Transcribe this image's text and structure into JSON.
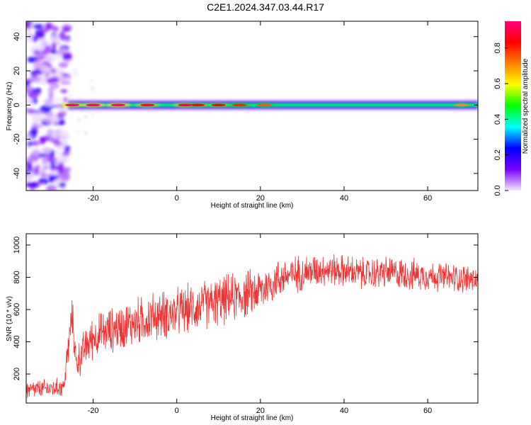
{
  "title": "C2E1.2024.347.03.44.R17",
  "chart_data": [
    {
      "type": "heatmap",
      "title": "",
      "xlabel": "Height of straight line (km)",
      "ylabel": "Frequency (Hz)",
      "xlim": [
        -36,
        72
      ],
      "ylim": [
        -50,
        49
      ],
      "xticks": [
        -20,
        0,
        20,
        40,
        60
      ],
      "yticks": [
        -40,
        -20,
        0,
        20,
        40
      ],
      "xtick_labels": [
        "-20",
        "0",
        "20",
        "40",
        "60"
      ],
      "ytick_labels": [
        "-40",
        "-20",
        "0",
        "20",
        "40"
      ],
      "description_noise_region_x": [
        -36,
        -26
      ],
      "signal_band": {
        "frequency": 0,
        "x_start": -26,
        "x_end": 72,
        "peaks": [
          {
            "x": -25,
            "amplitude": 0.95
          },
          {
            "x": -20,
            "amplitude": 0.95
          },
          {
            "x": -14,
            "amplitude": 0.95
          },
          {
            "x": -7,
            "amplitude": 0.9
          },
          {
            "x": 2,
            "amplitude": 0.9
          },
          {
            "x": 5,
            "amplitude": 0.85
          },
          {
            "x": 10,
            "amplitude": 0.85
          },
          {
            "x": 15,
            "amplitude": 0.8
          },
          {
            "x": 21,
            "amplitude": 0.75
          },
          {
            "x": 68,
            "amplitude": 0.7
          }
        ]
      },
      "colorbar": {
        "label": "Normalized spectral amplitude",
        "range": [
          0,
          0.95
        ],
        "ticks": [
          0,
          0.2,
          0.4,
          0.6,
          0.8
        ],
        "tick_labels": [
          "0.0",
          "0.2",
          "0.4",
          "0.6",
          "0.8"
        ],
        "colors": [
          "#f4e6ff",
          "#7a00ff",
          "#0000ff",
          "#00ffff",
          "#00ff00",
          "#ffff00",
          "#ff8000",
          "#ff0000",
          "#ff0080"
        ]
      },
      "grid": false
    },
    {
      "type": "line",
      "title": "",
      "xlabel": "Height of straight line (km)",
      "ylabel": "SNR (10 * v/v)",
      "xlim": [
        -36,
        72
      ],
      "ylim": [
        20,
        1070
      ],
      "xticks": [
        -20,
        0,
        20,
        40,
        60
      ],
      "yticks": [
        200,
        400,
        600,
        800,
        1000
      ],
      "xtick_labels": [
        "-20",
        "0",
        "20",
        "40",
        "60"
      ],
      "ytick_labels": [
        "200",
        "400",
        "600",
        "800",
        "1000"
      ],
      "series": [
        {
          "color": "#ee3333",
          "x": [
            -36,
            -30,
            -27,
            -26,
            -25,
            -24,
            -22,
            -20,
            -15,
            -10,
            -5,
            0,
            5,
            10,
            15,
            20,
            25,
            30,
            35,
            40,
            45,
            50,
            55,
            60,
            65,
            70,
            72
          ],
          "y": [
            100,
            110,
            120,
            350,
            560,
            260,
            360,
            430,
            480,
            520,
            560,
            580,
            620,
            650,
            680,
            720,
            800,
            830,
            850,
            840,
            820,
            830,
            820,
            810,
            800,
            790,
            780
          ],
          "noise_amplitude": [
            60,
            60,
            60,
            120,
            120,
            110,
            120,
            130,
            140,
            150,
            150,
            150,
            150,
            150,
            150,
            140,
            120,
            110,
            100,
            100,
            100,
            100,
            100,
            90,
            90,
            90,
            90
          ]
        }
      ],
      "grid": false
    }
  ]
}
